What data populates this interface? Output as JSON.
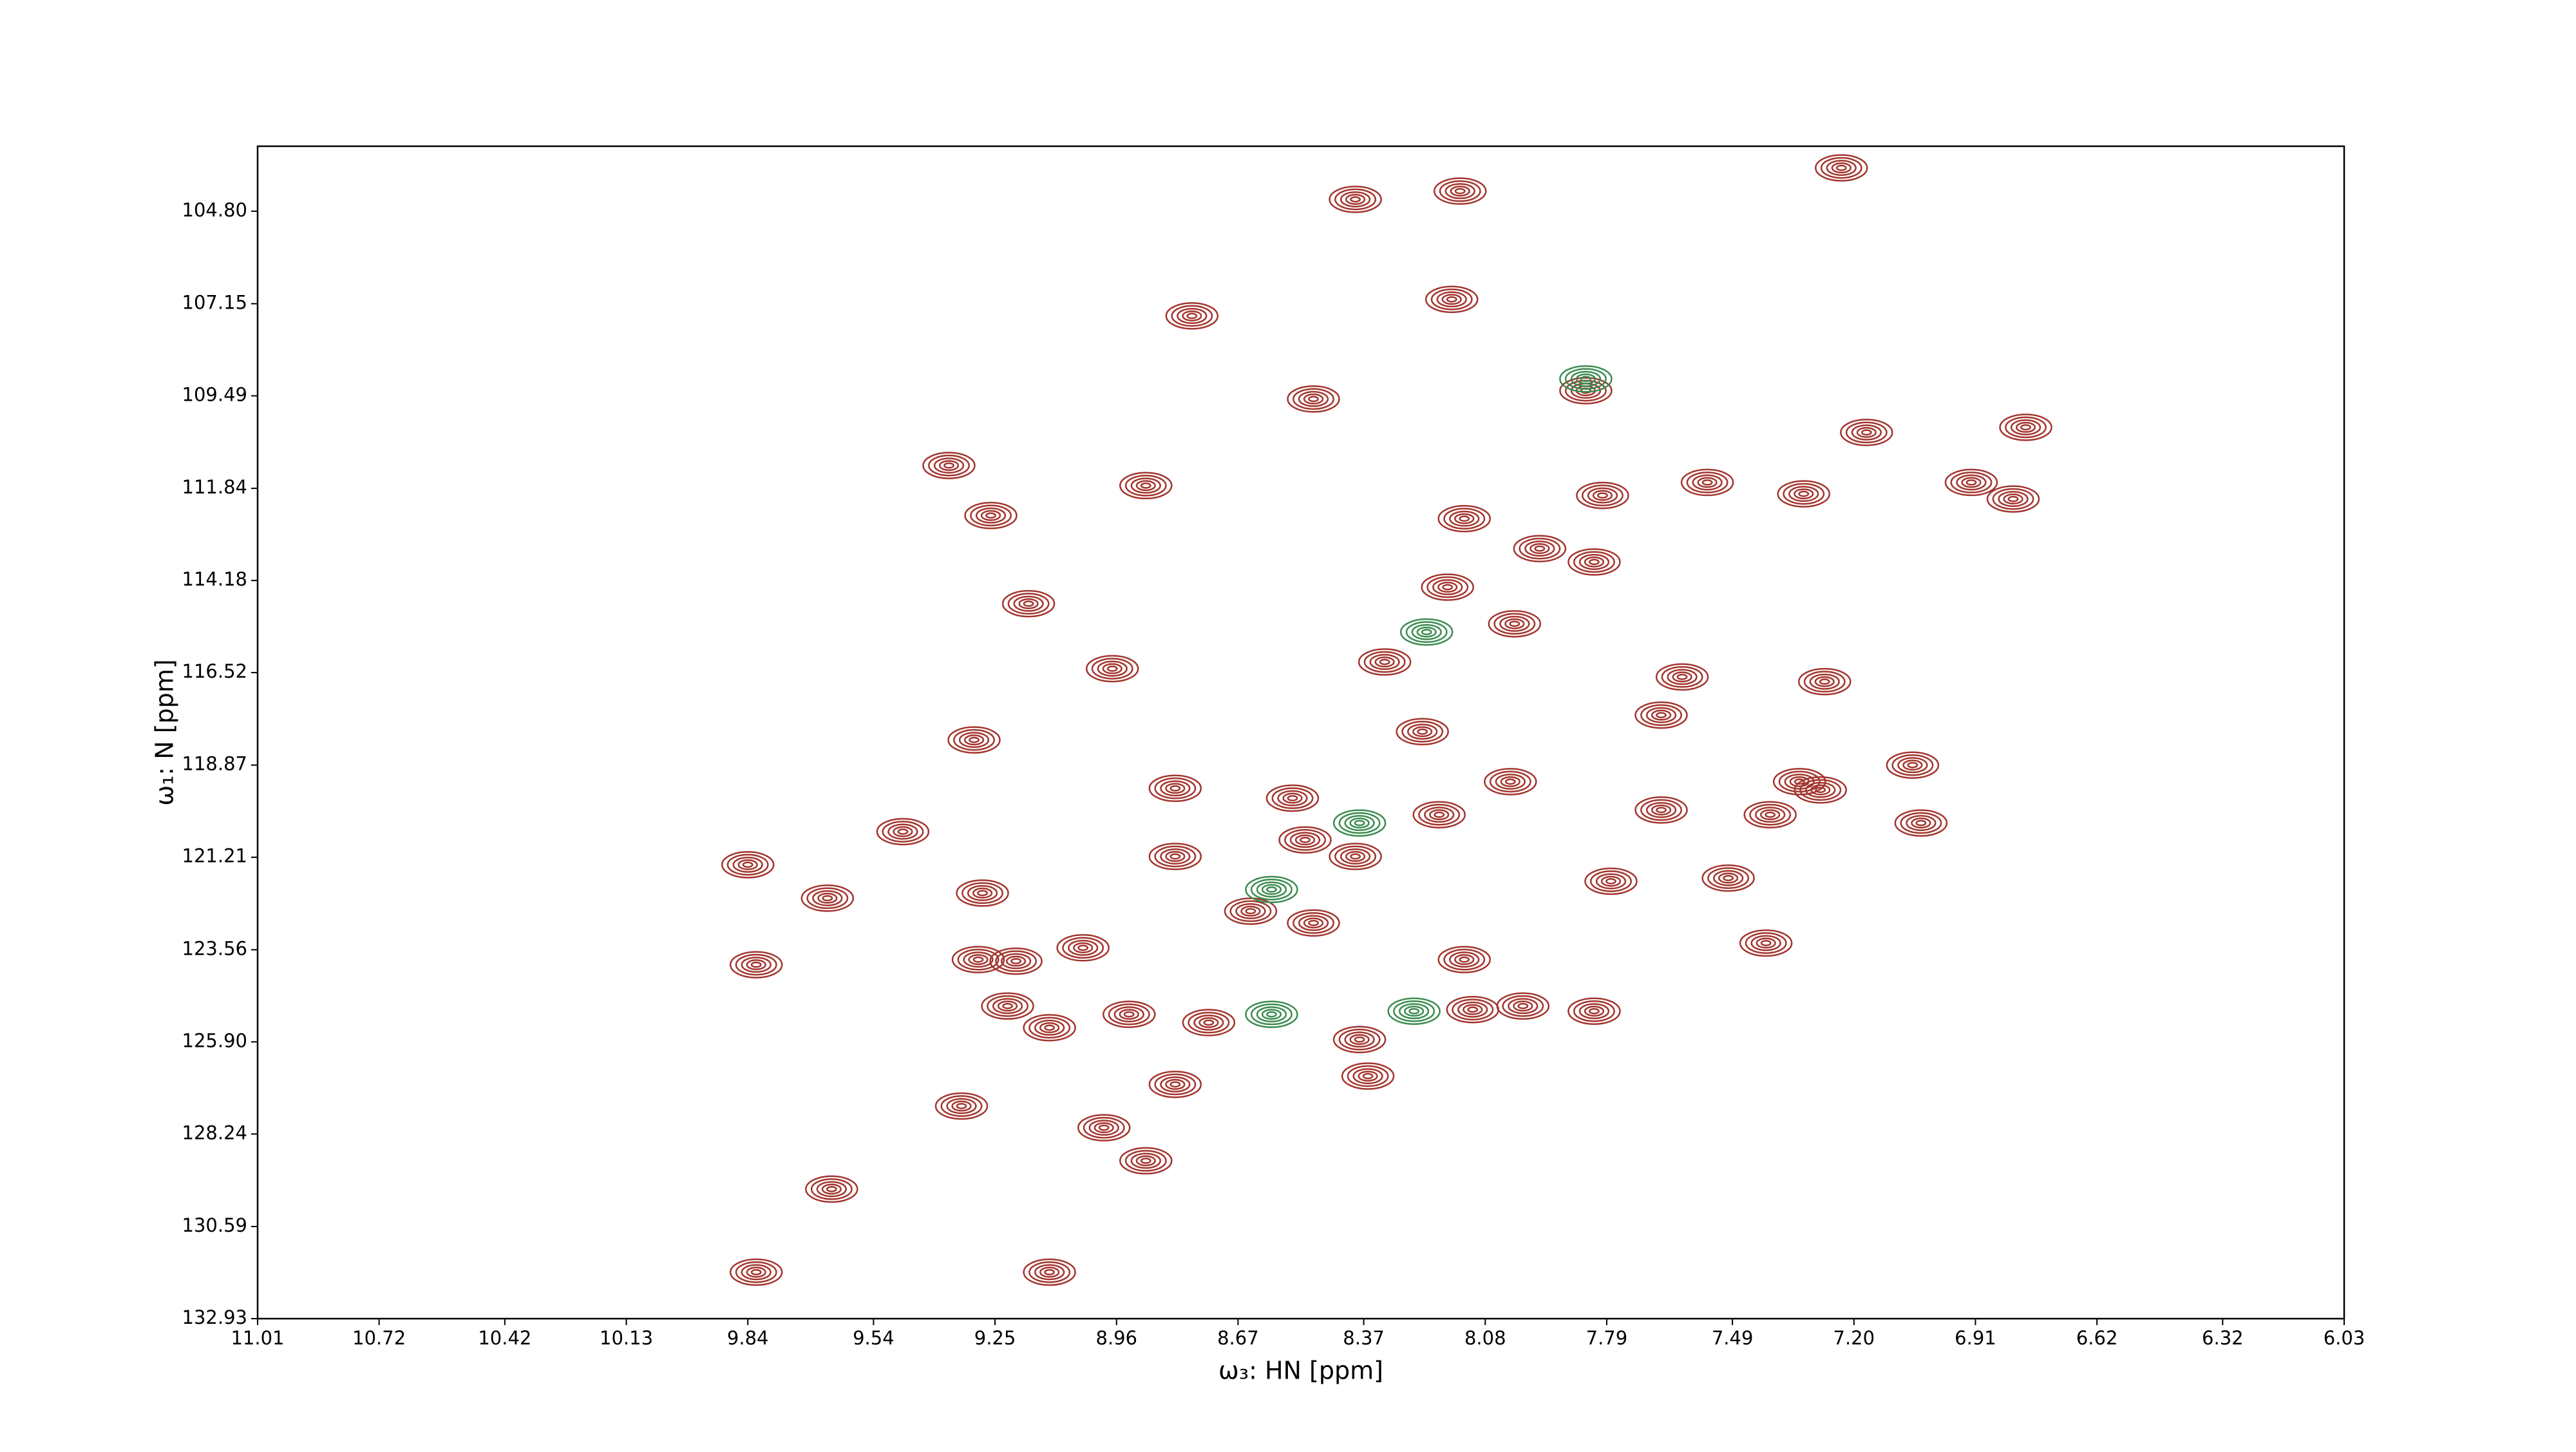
{
  "chart_data": {
    "type": "contour",
    "xlabel": "ω₃: HN [ppm]",
    "ylabel": "ω₁: N [ppm]",
    "xlim": [
      11.01,
      6.03
    ],
    "ylim": [
      132.93,
      103.15
    ],
    "xticks": [
      11.01,
      10.72,
      10.42,
      10.13,
      9.84,
      9.54,
      9.25,
      8.96,
      8.67,
      8.37,
      8.08,
      7.79,
      7.49,
      {
        "value": 7.2,
        "label": "7.20"
      },
      6.91,
      6.62,
      6.32,
      6.03
    ],
    "yticks": [
      {
        "value": 104.8,
        "label": "104.80"
      },
      107.15,
      109.49,
      111.84,
      114.18,
      116.52,
      118.87,
      121.21,
      123.56,
      {
        "value": 125.9,
        "label": "125.90"
      },
      128.24,
      130.59,
      132.93
    ],
    "series": [
      {
        "color": "#a3352e",
        "x": [
          8.14,
          7.23,
          8.39,
          8.16,
          8.78,
          8.49,
          7.84,
          7.17,
          6.79,
          9.36,
          8.89,
          7.8,
          7.55,
          7.32,
          6.92,
          6.82,
          8.13,
          9.26,
          7.95,
          7.82,
          9.17,
          8.17,
          8.01,
          8.97,
          8.32,
          7.61,
          7.27,
          9.3,
          7.66,
          8.23,
          8.82,
          8.54,
          8.02,
          7.33,
          7.06,
          7.66,
          7.28,
          7.4,
          9.47,
          8.51,
          8.19,
          8.82,
          8.39,
          7.04,
          9.84,
          9.65,
          9.28,
          7.78,
          7.5,
          8.64,
          8.49,
          9.04,
          9.82,
          9.29,
          9.2,
          8.13,
          7.41,
          9.22,
          8.93,
          8.74,
          8.38,
          8.11,
          7.99,
          7.82,
          9.12,
          8.36,
          8.82,
          9.33,
          8.99,
          8.89,
          9.64,
          9.12,
          9.82
        ],
        "values": [
          104.29,
          103.7,
          104.5,
          107.04,
          107.46,
          109.57,
          109.36,
          110.42,
          110.29,
          111.26,
          111.77,
          112.02,
          111.69,
          111.98,
          111.69,
          112.11,
          112.61,
          112.53,
          113.37,
          113.71,
          114.77,
          114.35,
          115.28,
          116.42,
          116.25,
          116.63,
          116.75,
          118.23,
          117.6,
          118.02,
          119.46,
          119.71,
          119.29,
          119.29,
          118.87,
          120.01,
          119.5,
          120.13,
          120.56,
          120.77,
          120.13,
          121.19,
          121.19,
          120.34,
          121.4,
          122.25,
          122.12,
          121.82,
          121.74,
          122.58,
          122.88,
          123.51,
          123.94,
          123.81,
          123.85,
          123.81,
          123.39,
          124.99,
          125.2,
          125.41,
          125.84,
          125.08,
          124.99,
          125.12,
          125.54,
          126.77,
          126.98,
          127.53,
          128.08,
          128.92,
          129.64,
          131.75,
          131.75
        ]
      },
      {
        "color": "#3b8b50",
        "x": [
          8.38,
          8.59,
          8.25,
          8.59,
          8.22,
          7.84
        ],
        "values": [
          120.34,
          122.03,
          125.12,
          125.2,
          115.49,
          109.06
        ]
      }
    ]
  }
}
